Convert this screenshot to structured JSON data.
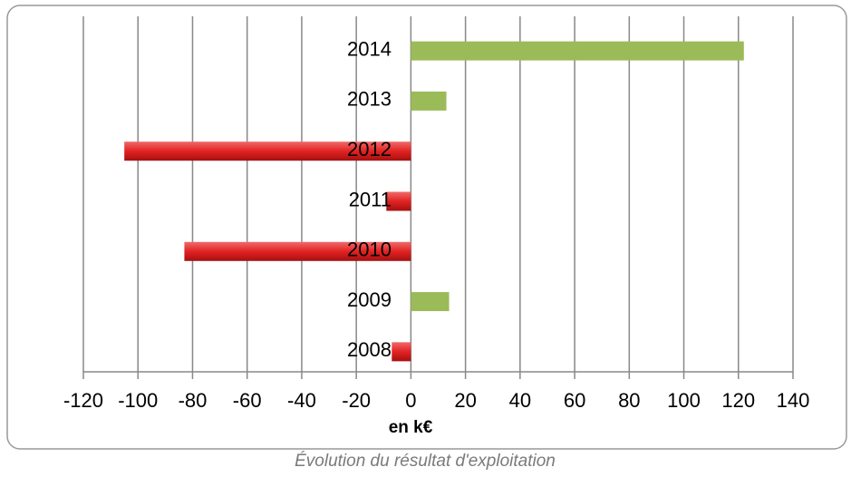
{
  "chart_data": {
    "type": "barh",
    "caption": "Évolution du résultat d'exploitation",
    "xlabel": "en k€",
    "categories": [
      "2008",
      "2009",
      "2010",
      "2011",
      "2012",
      "2013",
      "2014"
    ],
    "values": [
      -7,
      14,
      -83,
      -9,
      -105,
      13,
      122
    ],
    "color_positive": "#9bbb59",
    "color_negative": "#e32222",
    "xlim": [
      -120,
      140
    ],
    "xticks": [
      -120,
      -100,
      -80,
      -60,
      -40,
      -20,
      0,
      20,
      40,
      60,
      80,
      100,
      120,
      140
    ],
    "grid": true
  }
}
